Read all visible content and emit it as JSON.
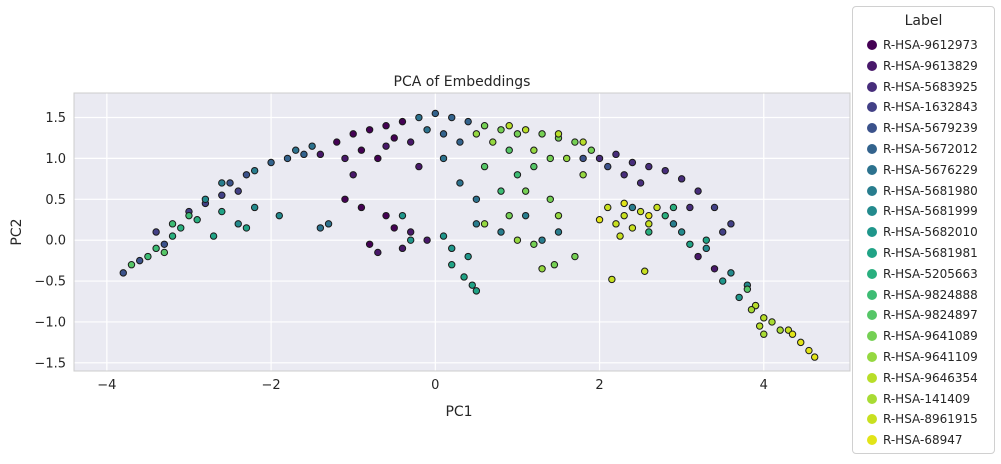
{
  "chart_data": {
    "type": "scatter",
    "title": "PCA of Embeddings",
    "xlabel": "PC1",
    "ylabel": "PC2",
    "xlim": [
      -4.4,
      5.05
    ],
    "ylim": [
      -1.6,
      1.8
    ],
    "xticks": [
      -4,
      -2,
      0,
      2,
      4
    ],
    "xtick_labels": [
      "−4",
      "−2",
      "0",
      "2",
      "4"
    ],
    "yticks": [
      -1.5,
      -1.0,
      -0.5,
      0.0,
      0.5,
      1.0,
      1.5
    ],
    "ytick_labels": [
      "−1.5",
      "−1.0",
      "−0.5",
      "0.0",
      "0.5",
      "1.0",
      "1.5"
    ],
    "grid": true,
    "legend_title": "Label",
    "legend_placement": "outside-right",
    "series": [
      {
        "name": "R-HSA-9612973",
        "color": "#440154",
        "points": [
          [
            -1.2,
            1.2
          ],
          [
            -1.0,
            1.3
          ],
          [
            -0.8,
            1.35
          ],
          [
            -0.6,
            1.4
          ],
          [
            -0.5,
            1.25
          ],
          [
            -0.9,
            1.1
          ],
          [
            -0.4,
            1.45
          ],
          [
            -0.7,
            1.0
          ],
          [
            -1.1,
            0.5
          ],
          [
            -0.9,
            0.4
          ],
          [
            -0.6,
            0.3
          ],
          [
            -0.5,
            0.15
          ],
          [
            -0.8,
            -0.05
          ]
        ]
      },
      {
        "name": "R-HSA-9613829",
        "color": "#48186a",
        "points": [
          [
            -1.4,
            1.05
          ],
          [
            -1.1,
            1.0
          ],
          [
            -0.3,
            1.2
          ],
          [
            -0.6,
            1.15
          ],
          [
            -1.0,
            0.8
          ],
          [
            -0.2,
            0.9
          ],
          [
            -0.3,
            0.1
          ],
          [
            -0.1,
            0.0
          ],
          [
            -0.4,
            -0.1
          ],
          [
            -0.7,
            -0.15
          ],
          [
            3.2,
            -0.2
          ],
          [
            3.4,
            -0.35
          ]
        ]
      },
      {
        "name": "R-HSA-5683925",
        "color": "#472d7b",
        "points": [
          [
            2.0,
            1.0
          ],
          [
            2.2,
            1.05
          ],
          [
            2.4,
            0.95
          ],
          [
            2.6,
            0.9
          ],
          [
            2.8,
            0.85
          ],
          [
            3.0,
            0.75
          ],
          [
            2.5,
            0.7
          ],
          [
            2.3,
            0.8
          ],
          [
            3.2,
            0.6
          ],
          [
            3.1,
            0.4
          ]
        ]
      },
      {
        "name": "R-HSA-1632843",
        "color": "#424086",
        "points": [
          [
            -3.0,
            0.35
          ],
          [
            -2.8,
            0.45
          ],
          [
            -2.6,
            0.55
          ],
          [
            -2.4,
            0.6
          ],
          [
            -3.4,
            0.1
          ],
          [
            3.4,
            0.4
          ],
          [
            3.6,
            0.2
          ],
          [
            3.5,
            0.1
          ]
        ]
      },
      {
        "name": "R-HSA-5679239",
        "color": "#3b528b",
        "points": [
          [
            -3.8,
            -0.4
          ],
          [
            -3.6,
            -0.25
          ],
          [
            -3.3,
            -0.05
          ],
          [
            -2.5,
            0.7
          ],
          [
            -2.3,
            0.8
          ],
          [
            1.8,
            1.0
          ],
          [
            2.1,
            0.9
          ]
        ]
      },
      {
        "name": "R-HSA-5672012",
        "color": "#33638d",
        "points": [
          [
            -2.0,
            0.95
          ],
          [
            -1.8,
            1.0
          ],
          [
            -1.6,
            1.05
          ],
          [
            0.0,
            1.55
          ],
          [
            0.2,
            1.5
          ],
          [
            0.4,
            1.45
          ],
          [
            0.1,
            1.3
          ],
          [
            0.3,
            1.2
          ]
        ]
      },
      {
        "name": "R-HSA-5676229",
        "color": "#2c728e",
        "points": [
          [
            -1.7,
            1.1
          ],
          [
            -1.5,
            1.15
          ],
          [
            -0.2,
            1.5
          ],
          [
            -0.1,
            1.35
          ],
          [
            0.1,
            1.0
          ],
          [
            0.3,
            0.7
          ],
          [
            0.5,
            0.5
          ],
          [
            -1.3,
            0.2
          ],
          [
            -1.4,
            0.15
          ]
        ]
      },
      {
        "name": "R-HSA-5681980",
        "color": "#287d8e",
        "points": [
          [
            -2.2,
            0.85
          ],
          [
            -2.6,
            0.7
          ],
          [
            0.5,
            0.2
          ],
          [
            0.8,
            0.1
          ],
          [
            1.3,
            0.0
          ],
          [
            1.5,
            0.1
          ],
          [
            1.1,
            0.3
          ],
          [
            2.4,
            0.4
          ],
          [
            2.9,
            0.2
          ]
        ]
      },
      {
        "name": "R-HSA-5681999",
        "color": "#238a8d",
        "points": [
          [
            -2.8,
            0.5
          ],
          [
            -2.2,
            0.4
          ],
          [
            -1.9,
            0.3
          ],
          [
            -2.4,
            0.2
          ],
          [
            3.0,
            0.1
          ],
          [
            3.3,
            -0.1
          ],
          [
            3.6,
            -0.4
          ],
          [
            3.8,
            -0.55
          ]
        ]
      },
      {
        "name": "R-HSA-5682010",
        "color": "#1f968b",
        "points": [
          [
            -0.4,
            0.3
          ],
          [
            -0.3,
            0.0
          ],
          [
            0.1,
            0.05
          ],
          [
            0.4,
            -0.2
          ],
          [
            0.2,
            -0.1
          ],
          [
            3.5,
            -0.5
          ],
          [
            3.7,
            -0.7
          ],
          [
            3.9,
            -0.8
          ]
        ]
      },
      {
        "name": "R-HSA-5681981",
        "color": "#20a386",
        "points": [
          [
            -2.6,
            0.35
          ],
          [
            -2.3,
            0.15
          ],
          [
            -2.7,
            0.05
          ],
          [
            0.2,
            -0.3
          ],
          [
            0.35,
            -0.45
          ],
          [
            0.45,
            -0.55
          ],
          [
            0.5,
            -0.62
          ],
          [
            3.3,
            0.0
          ],
          [
            3.1,
            -0.05
          ]
        ]
      },
      {
        "name": "R-HSA-5205663",
        "color": "#29af7f",
        "points": [
          [
            -3.2,
            0.05
          ],
          [
            -3.1,
            0.15
          ],
          [
            -2.9,
            0.25
          ],
          [
            2.8,
            0.3
          ],
          [
            2.6,
            0.1
          ],
          [
            2.9,
            0.4
          ]
        ]
      },
      {
        "name": "R-HSA-9824888",
        "color": "#3dbc74",
        "points": [
          [
            -3.5,
            -0.2
          ],
          [
            -3.4,
            -0.1
          ],
          [
            -3.2,
            0.2
          ],
          [
            -3.0,
            0.3
          ],
          [
            0.8,
            0.6
          ],
          [
            1.0,
            0.8
          ]
        ]
      },
      {
        "name": "R-HSA-9824897",
        "color": "#56c667",
        "points": [
          [
            -3.7,
            -0.3
          ],
          [
            -3.3,
            -0.15
          ],
          [
            0.6,
            0.9
          ],
          [
            0.9,
            1.1
          ],
          [
            1.2,
            0.9
          ],
          [
            3.8,
            -0.6
          ]
        ]
      },
      {
        "name": "R-HSA-9641089",
        "color": "#75d054",
        "points": [
          [
            0.6,
            1.4
          ],
          [
            0.8,
            1.35
          ],
          [
            1.0,
            1.3
          ],
          [
            1.3,
            1.3
          ],
          [
            1.5,
            1.25
          ],
          [
            1.7,
            1.2
          ],
          [
            1.9,
            1.1
          ],
          [
            1.4,
            1.0
          ],
          [
            1.1,
            0.6
          ],
          [
            1.4,
            0.5
          ],
          [
            1.7,
            -0.2
          ],
          [
            1.45,
            -0.3
          ],
          [
            0.9,
            0.3
          ],
          [
            1.2,
            -0.05
          ]
        ]
      },
      {
        "name": "R-HSA-9641109",
        "color": "#95d840",
        "points": [
          [
            0.5,
            1.3
          ],
          [
            0.7,
            1.2
          ],
          [
            1.2,
            1.1
          ],
          [
            1.6,
            1.0
          ],
          [
            1.8,
            0.8
          ],
          [
            0.6,
            0.2
          ],
          [
            1.0,
            0.0
          ],
          [
            1.5,
            0.3
          ],
          [
            1.3,
            -0.35
          ]
        ]
      },
      {
        "name": "R-HSA-9646354",
        "color": "#b8de29",
        "points": [
          [
            0.9,
            1.4
          ],
          [
            1.1,
            1.35
          ],
          [
            1.5,
            1.3
          ],
          [
            1.8,
            1.2
          ],
          [
            3.9,
            -0.8
          ],
          [
            4.0,
            -0.95
          ],
          [
            3.95,
            -1.05
          ]
        ]
      },
      {
        "name": "R-HSA-141409",
        "color": "#a8db34",
        "points": [
          [
            4.1,
            -1.0
          ],
          [
            4.2,
            -1.1
          ],
          [
            3.85,
            -0.85
          ],
          [
            4.0,
            -1.15
          ]
        ]
      },
      {
        "name": "R-HSA-8961915",
        "color": "#c8e020",
        "points": [
          [
            2.1,
            0.4
          ],
          [
            2.3,
            0.3
          ],
          [
            2.5,
            0.35
          ],
          [
            2.2,
            0.2
          ],
          [
            2.4,
            0.15
          ],
          [
            2.6,
            0.2
          ],
          [
            2.7,
            0.4
          ],
          [
            2.25,
            0.05
          ],
          [
            4.3,
            -1.1
          ],
          [
            2.15,
            -0.48
          ],
          [
            2.55,
            -0.38
          ]
        ]
      },
      {
        "name": "R-HSA-68947",
        "color": "#e2e418",
        "points": [
          [
            2.0,
            0.25
          ],
          [
            2.3,
            0.45
          ],
          [
            2.6,
            0.3
          ],
          [
            4.35,
            -1.15
          ],
          [
            4.45,
            -1.25
          ],
          [
            4.55,
            -1.35
          ],
          [
            4.62,
            -1.43
          ]
        ]
      }
    ]
  }
}
